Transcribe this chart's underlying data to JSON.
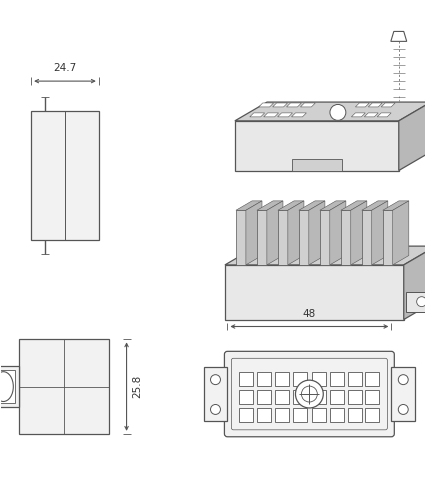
{
  "bg_color": "#ffffff",
  "line_color": "#555555",
  "lw": 0.9,
  "fig_width": 4.26,
  "fig_height": 5.0,
  "dpi": 100,
  "text_color": "#333333",
  "font_size": 7.5,
  "gray_light": "#e8e8e8",
  "gray_mid": "#d0d0d0",
  "gray_dark": "#b8b8b8",
  "gray_face": "#f2f2f2",
  "dim_247": "24.7",
  "dim_48": "48",
  "dim_258": "25.8"
}
